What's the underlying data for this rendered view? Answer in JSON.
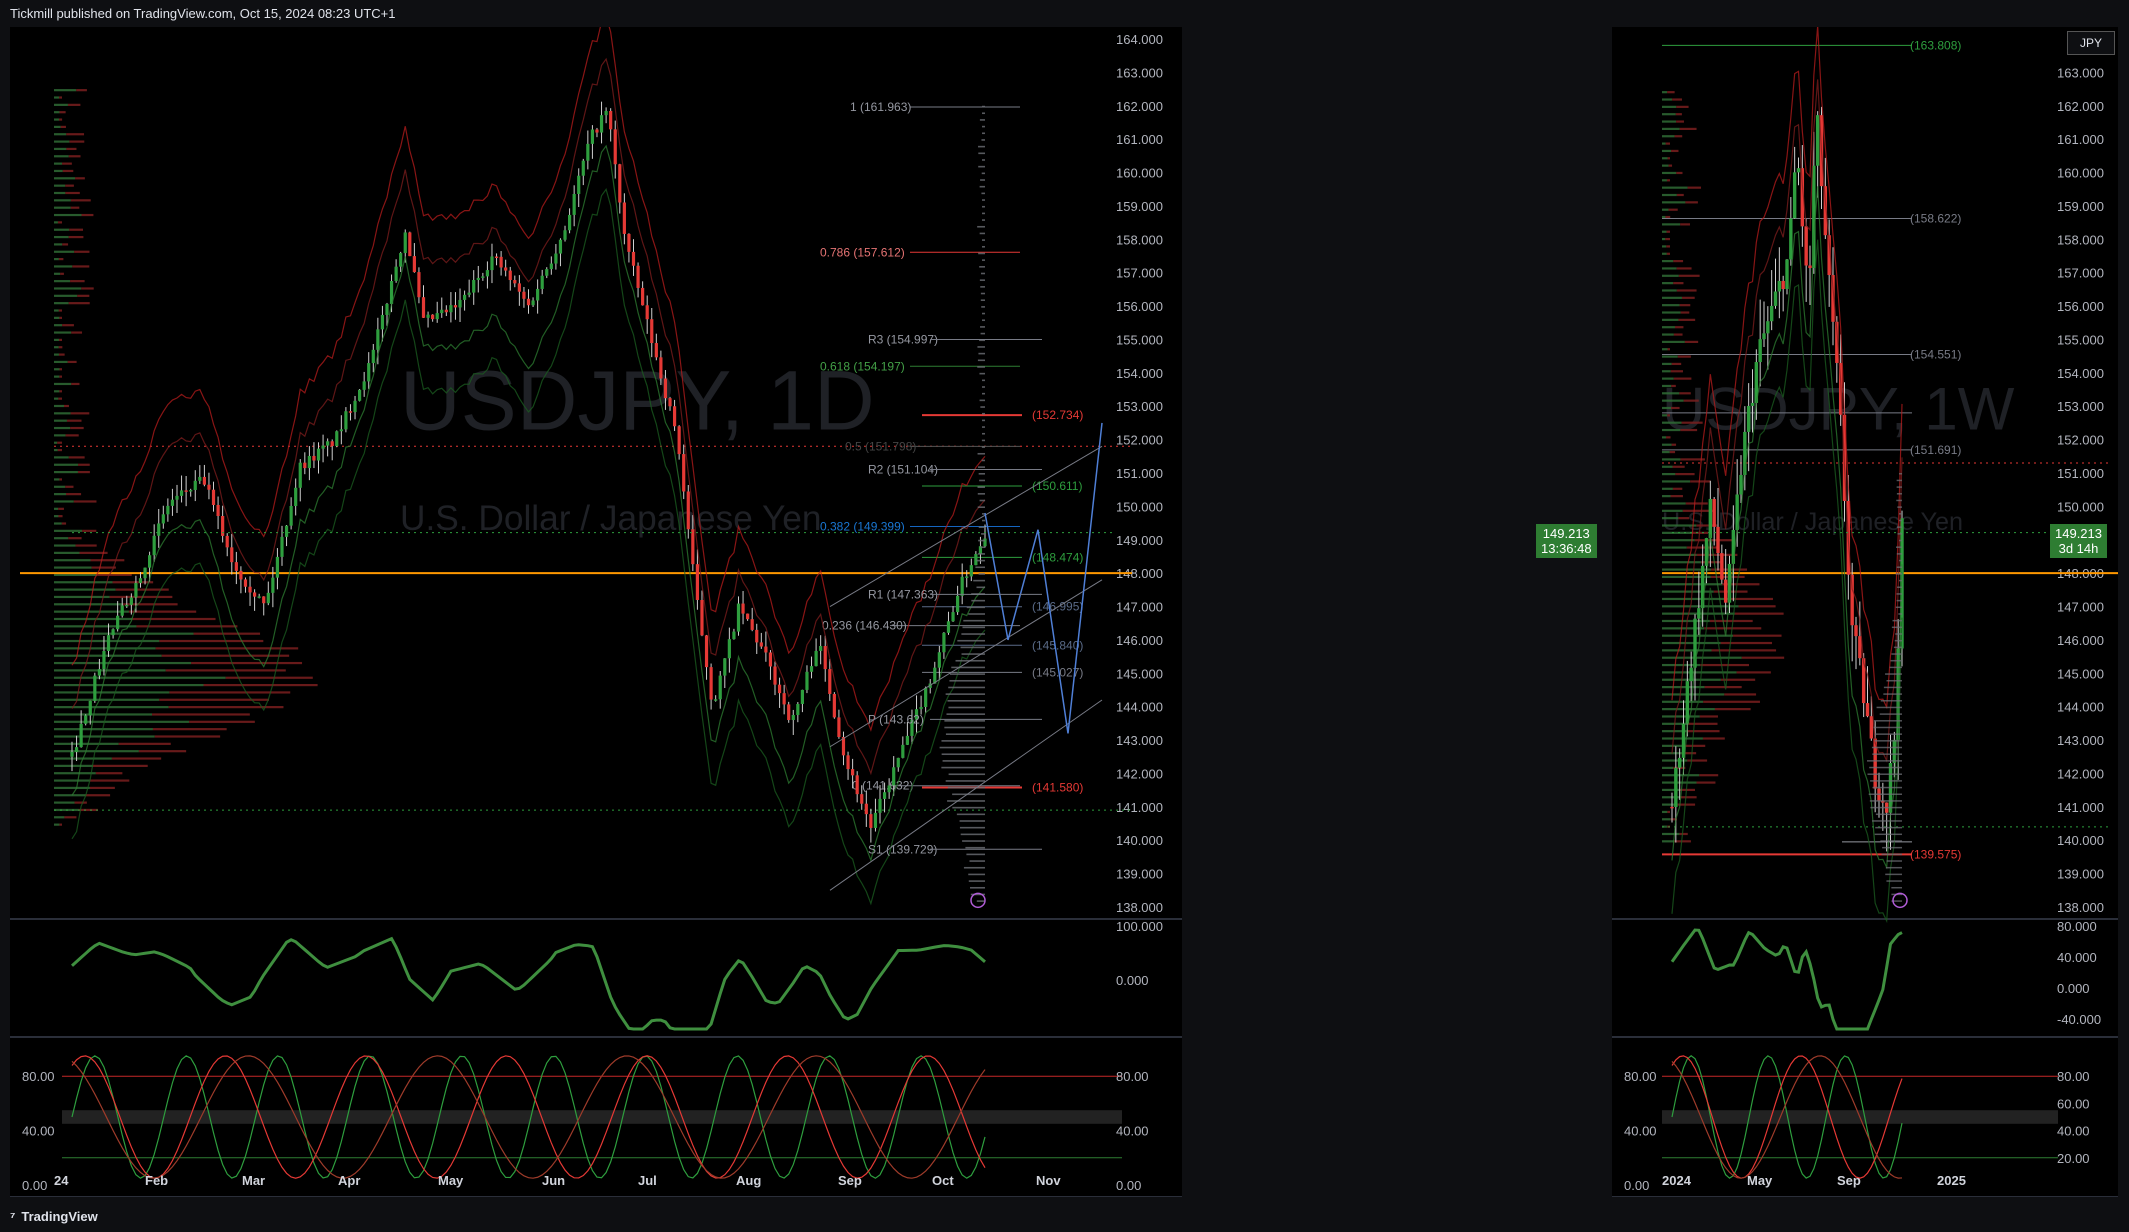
{
  "header": {
    "publisher": "Tickmill published on TradingView.com, Oct 15, 2024 08:23 UTC+1"
  },
  "footer": {
    "brand": "TradingView"
  },
  "daily": {
    "watermark_symbol": "USDJPY, 1D",
    "watermark_name": "U.S. Dollar / Japanese Yen",
    "price_badge": "149.213",
    "countdown": "13:36:48",
    "price_ticks": [
      "164.000",
      "163.000",
      "162.000",
      "161.000",
      "160.000",
      "159.000",
      "158.000",
      "157.000",
      "156.000",
      "155.000",
      "154.000",
      "153.000",
      "152.000",
      "151.000",
      "150.000",
      "149.000",
      "148.000",
      "147.000",
      "146.000",
      "145.000",
      "144.000",
      "143.000",
      "142.000",
      "141.000",
      "140.000",
      "139.000",
      "138.000"
    ],
    "time_labels": [
      "24",
      "Feb",
      "Mar",
      "Apr",
      "May",
      "Jun",
      "Jul",
      "Aug",
      "Sep",
      "Oct",
      "Nov"
    ],
    "momentum_ticks": [
      "100.000",
      "0.000"
    ],
    "stoch_ticks_left": [
      "80.00",
      "40.00",
      "0.00"
    ],
    "stoch_ticks_right": [
      "80.00",
      "40.00",
      "0.00"
    ],
    "fib_labels": [
      "1 (161.963)",
      "0.786 (157.612)",
      "0.618 (154.197)",
      "0.5 (151.798)",
      "0.382 (149.399)",
      "0.236 (146.430)",
      "0 (141.632)"
    ],
    "pivot_labels": [
      "R3 (154.997)",
      "R2 (151.104)",
      "R1 (147.363)",
      "P (143.62)",
      "S1 (139.729)"
    ],
    "level_labels_red": [
      "(152.734)",
      "(141.580)"
    ],
    "level_labels_green": [
      "(150.611)",
      "(148.474)"
    ],
    "level_labels_gray": [
      "(146.995)",
      "(145.840)",
      "(145.027)"
    ]
  },
  "weekly": {
    "watermark_symbol": "USDJPY, 1W",
    "watermark_name": "U.S. Dollar / Japanese Yen",
    "currency_button": "JPY",
    "price_badge": "149.213",
    "countdown": "3d 14h",
    "price_ticks": [
      "163.000",
      "162.000",
      "161.000",
      "160.000",
      "159.000",
      "158.000",
      "157.000",
      "156.000",
      "155.000",
      "154.000",
      "153.000",
      "152.000",
      "151.000",
      "150.000",
      "149.000",
      "148.000",
      "147.000",
      "146.000",
      "145.000",
      "144.000",
      "143.000",
      "142.000",
      "141.000",
      "140.000",
      "139.000",
      "138.000"
    ],
    "time_labels": [
      "2024",
      "May",
      "Sep",
      "2025"
    ],
    "momentum_ticks": [
      "80.000",
      "40.000",
      "0.000",
      "-40.000"
    ],
    "stoch_ticks_left": [
      "80.00",
      "40.00",
      "0.00"
    ],
    "stoch_ticks_right": [
      "80.00",
      "60.00",
      "40.00",
      "20.00"
    ],
    "level_labels": [
      "(163.808)",
      "(158.622)",
      "(154.551)",
      "(151.691)",
      "(139.575)"
    ]
  },
  "colors": {
    "up": "#2e9e3e",
    "down": "#e53935",
    "orange": "#ff9800",
    "blue": "#4f7fd6",
    "badge": "#2e7d32"
  },
  "chart_data": [
    {
      "type": "candlestick",
      "title": "USDJPY, 1D",
      "ylim": [
        138,
        164
      ],
      "x_ticks": [
        "24",
        "Feb",
        "Mar",
        "Apr",
        "May",
        "Jun",
        "Jul",
        "Aug",
        "Sep",
        "Oct",
        "Nov"
      ],
      "close_path": [
        [
          0,
          142.5
        ],
        [
          8,
          146.0
        ],
        [
          15,
          147.8
        ],
        [
          22,
          150.1
        ],
        [
          30,
          150.8
        ],
        [
          37,
          148.2
        ],
        [
          44,
          147.0
        ],
        [
          52,
          151.2
        ],
        [
          60,
          152.0
        ],
        [
          68,
          154.3
        ],
        [
          76,
          158.3
        ],
        [
          80,
          155.5
        ],
        [
          88,
          156.0
        ],
        [
          96,
          157.5
        ],
        [
          104,
          156.0
        ],
        [
          112,
          158.2
        ],
        [
          118,
          161.0
        ],
        [
          122,
          161.9
        ],
        [
          126,
          158.0
        ],
        [
          132,
          155.0
        ],
        [
          138,
          152.0
        ],
        [
          142,
          147.5
        ],
        [
          146,
          144.0
        ],
        [
          152,
          147.0
        ],
        [
          158,
          145.5
        ],
        [
          164,
          143.5
        ],
        [
          170,
          146.0
        ],
        [
          176,
          142.5
        ],
        [
          182,
          140.4
        ],
        [
          190,
          143.0
        ],
        [
          196,
          145.0
        ],
        [
          202,
          147.5
        ],
        [
          208,
          149.2
        ]
      ],
      "current_price": 149.213,
      "orange_level": 148.0,
      "fib_levels": [
        161.963,
        157.612,
        154.197,
        151.798,
        149.399,
        146.43,
        141.632
      ],
      "pivots": {
        "R3": 154.997,
        "R2": 151.104,
        "R1": 147.363,
        "P": 143.62,
        "S1": 139.729
      }
    },
    {
      "type": "candlestick",
      "title": "USDJPY, 1W",
      "ylim": [
        138,
        164
      ],
      "x_ticks": [
        "2024",
        "May",
        "Sep",
        "2025"
      ],
      "close_path": [
        [
          0,
          141.0
        ],
        [
          6,
          146.5
        ],
        [
          10,
          150.0
        ],
        [
          14,
          147.0
        ],
        [
          18,
          151.5
        ],
        [
          22,
          154.5
        ],
        [
          26,
          156.0
        ],
        [
          30,
          157.5
        ],
        [
          32,
          160.8
        ],
        [
          35,
          156.0
        ],
        [
          37,
          161.9
        ],
        [
          40,
          157.0
        ],
        [
          43,
          153.0
        ],
        [
          46,
          146.5
        ],
        [
          49,
          144.5
        ],
        [
          52,
          142.0
        ],
        [
          55,
          141.0
        ],
        [
          57,
          143.0
        ],
        [
          59,
          149.2
        ]
      ],
      "current_price": 149.213,
      "levels": [
        163.808,
        158.622,
        154.551,
        151.691,
        139.575
      ]
    }
  ]
}
